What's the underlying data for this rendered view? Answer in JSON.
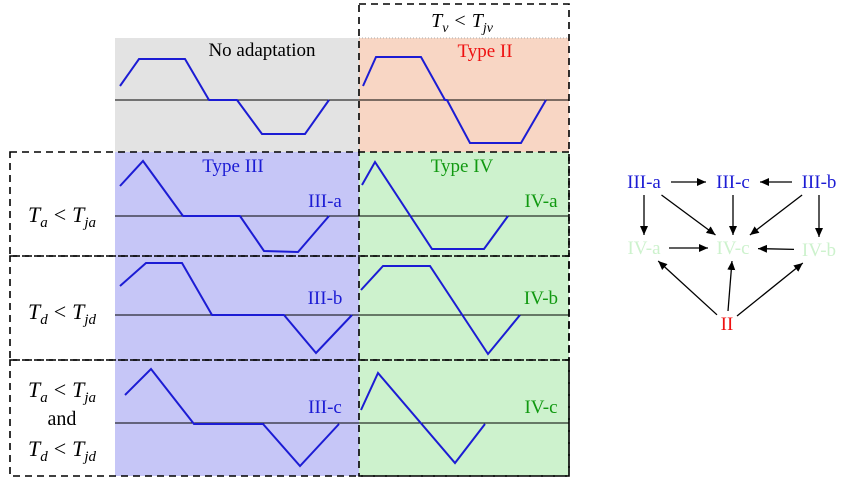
{
  "colors": {
    "gray": "#e3e3e3",
    "orange": "#f8d6c4",
    "purple": "#c6c6f7",
    "green": "#cdf2cd",
    "blue": "#1c1cd4",
    "green_text": "#119911",
    "red": "#ee1111",
    "black": "#000000"
  },
  "header": {
    "no_adaptation": "No adaptation",
    "type2": "Type II",
    "type3": "Type III",
    "type4": "Type IV",
    "top_condition": {
      "T1": "T",
      "sub1": "v",
      "op": "<",
      "T2": "T",
      "sub2": "jv"
    }
  },
  "rows": [
    {
      "condition": [
        {
          "T1": "T",
          "sub1": "a",
          "op": "<",
          "T2": "T",
          "sub2": "ja"
        }
      ],
      "left_tag": "III-a",
      "right_tag": "IV-a"
    },
    {
      "condition": [
        {
          "T1": "T",
          "sub1": "d",
          "op": "<",
          "T2": "T",
          "sub2": "jd"
        }
      ],
      "left_tag": "III-b",
      "right_tag": "IV-b"
    },
    {
      "condition": [
        {
          "T1": "T",
          "sub1": "a",
          "op": "<",
          "T2": "T",
          "sub2": "ja"
        },
        {
          "word": "and"
        },
        {
          "T1": "T",
          "sub1": "d",
          "op": "<",
          "T2": "T",
          "sub2": "jd"
        }
      ],
      "left_tag": "III-c",
      "right_tag": "IV-c"
    }
  ],
  "graph": {
    "nodes": {
      "IIIa": {
        "label": "III-a",
        "color": "blue"
      },
      "IIIc": {
        "label": "III-c",
        "color": "blue"
      },
      "IIIb": {
        "label": "III-b",
        "color": "blue"
      },
      "IVa": {
        "label": "IV-a",
        "color": "green"
      },
      "IVc": {
        "label": "IV-c",
        "color": "green"
      },
      "IVb": {
        "label": "IV-b",
        "color": "green"
      },
      "II": {
        "label": "II",
        "color": "red"
      }
    },
    "edges": [
      [
        "IIIa",
        "IIIc"
      ],
      [
        "IIIb",
        "IIIc"
      ],
      [
        "IIIa",
        "IVa"
      ],
      [
        "IIIa",
        "IVc"
      ],
      [
        "IIIc",
        "IVc"
      ],
      [
        "IIIb",
        "IVc"
      ],
      [
        "IIIb",
        "IVb"
      ],
      [
        "IVa",
        "IVc"
      ],
      [
        "IVb",
        "IVc"
      ],
      [
        "II",
        "IVa"
      ],
      [
        "II",
        "IVc"
      ],
      [
        "II",
        "IVb"
      ]
    ]
  }
}
